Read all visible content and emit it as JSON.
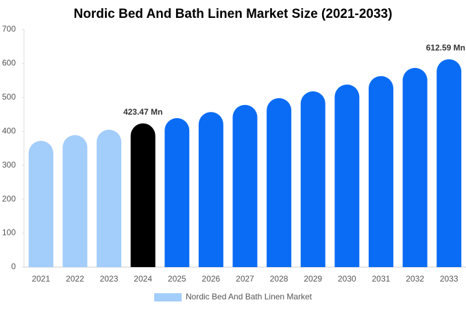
{
  "chart_data": {
    "type": "bar",
    "title": "Nordic Bed And Bath Linen Market Size (2021-2033)",
    "categories": [
      "2021",
      "2022",
      "2023",
      "2024",
      "2025",
      "2026",
      "2027",
      "2028",
      "2029",
      "2030",
      "2031",
      "2032",
      "2033"
    ],
    "series": [
      {
        "name": "Nordic Bed And Bath Linen Market",
        "color": "#a3cdfb",
        "values": [
          372,
          389,
          405,
          423.47,
          439,
          457,
          478,
          498,
          518,
          538,
          563,
          587,
          612.59
        ],
        "value_labels": [
          null,
          null,
          null,
          "423.47 Mn",
          null,
          null,
          null,
          null,
          null,
          null,
          null,
          null,
          "612.59 Mn"
        ],
        "bar_colors": [
          "#a3cdfb",
          "#a3cdfb",
          "#a3cdfb",
          "#000000",
          "#0a6cf5",
          "#0a6cf5",
          "#0a6cf5",
          "#0a6cf5",
          "#0a6cf5",
          "#0a6cf5",
          "#0a6cf5",
          "#0a6cf5",
          "#0a6cf5"
        ]
      }
    ],
    "ylim": [
      0,
      700
    ],
    "yticks": [
      0,
      100,
      200,
      300,
      400,
      500,
      600,
      700
    ],
    "grid": false
  }
}
